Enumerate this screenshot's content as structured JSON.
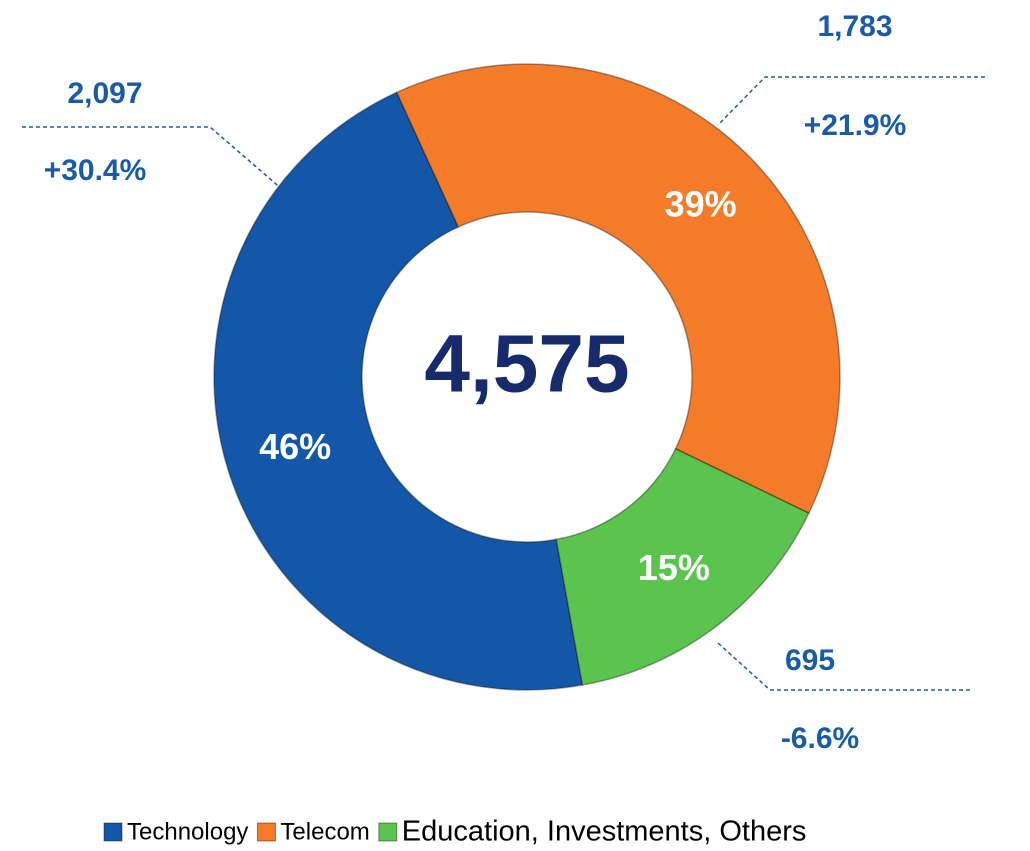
{
  "chart_data": {
    "type": "pie",
    "donut": true,
    "center_label": "4,575",
    "categories": [
      "Technology",
      "Telecom",
      "Education, Investments, Others"
    ],
    "values": [
      46,
      39,
      15
    ],
    "value_labels": [
      "46%",
      "39%",
      "15%"
    ],
    "colors": [
      "#1457a8",
      "#f47b29",
      "#5ac44f"
    ],
    "annotations": [
      {
        "amount": "2,097",
        "change": "+30.4%"
      },
      {
        "amount": "1,783",
        "change": "+21.9%"
      },
      {
        "amount": "695",
        "change": "-6.6%"
      }
    ],
    "legend": "bottom"
  }
}
